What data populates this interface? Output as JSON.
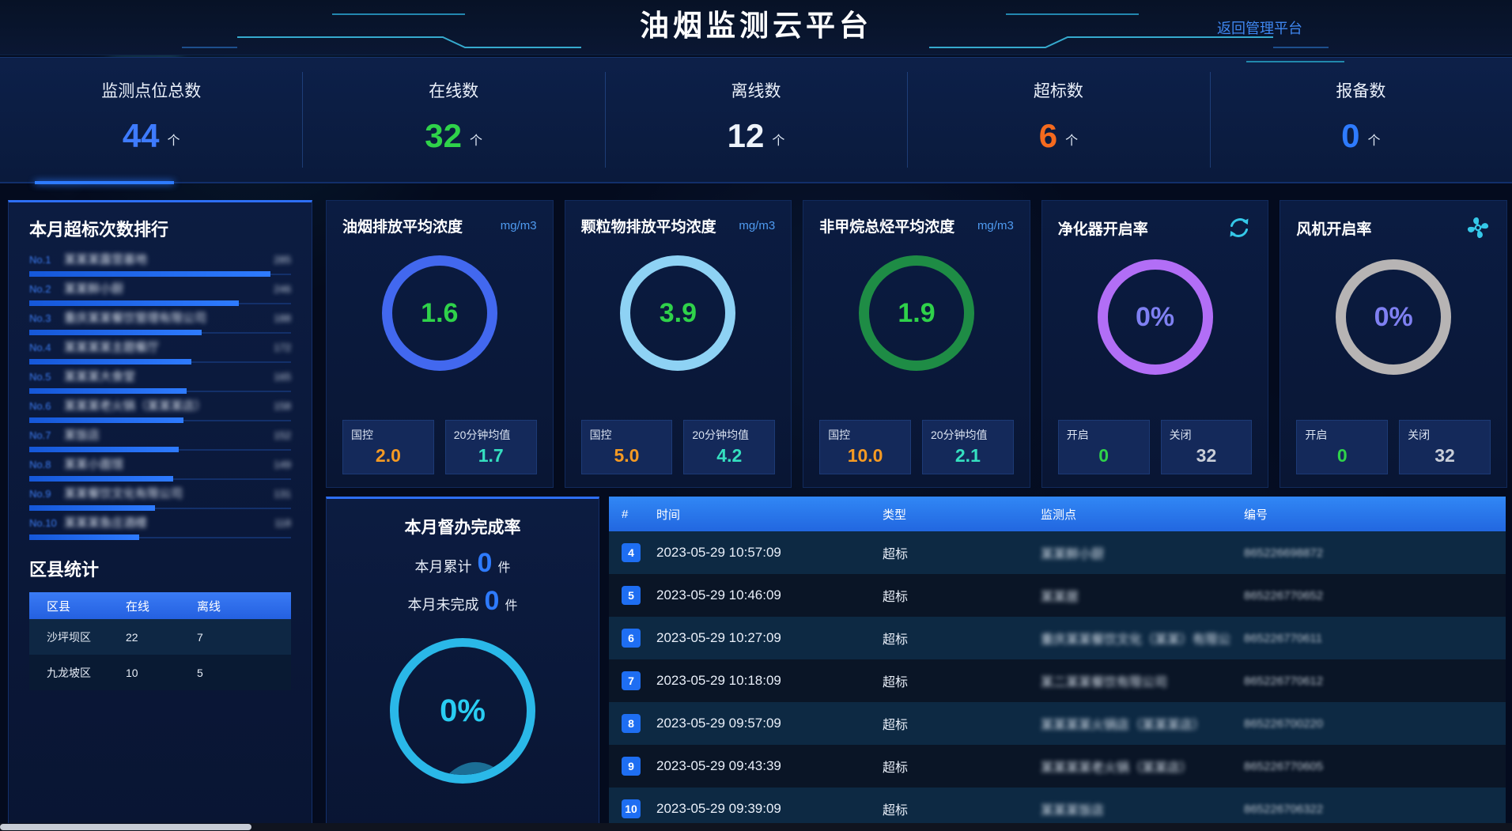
{
  "header": {
    "title": "油烟监测云平台",
    "back_label": "返回管理平台"
  },
  "stats": [
    {
      "label": "监测点位总数",
      "value": "44",
      "unit": "个",
      "color": "#3e7bff"
    },
    {
      "label": "在线数",
      "value": "32",
      "unit": "个",
      "color": "#2fd24a"
    },
    {
      "label": "离线数",
      "value": "12",
      "unit": "个",
      "color": "#eef3fa"
    },
    {
      "label": "超标数",
      "value": "6",
      "unit": "个",
      "color": "#f56a1e"
    },
    {
      "label": "报备数",
      "value": "0",
      "unit": "个",
      "color": "#2e7bff"
    }
  ],
  "ranking": {
    "title": "本月超标次数排行",
    "masked": true,
    "items": [
      {
        "rank": "No.1",
        "name": "某某某露营基地",
        "value": "285",
        "bar_percent": 92
      },
      {
        "rank": "No.2",
        "name": "某某鲜小厨",
        "value": "246",
        "bar_percent": 80
      },
      {
        "rank": "No.3",
        "name": "重庆某某餐饮管理有限公司",
        "value": "188",
        "bar_percent": 66
      },
      {
        "rank": "No.4",
        "name": "某某某某主题餐厅",
        "value": "172",
        "bar_percent": 62
      },
      {
        "rank": "No.5",
        "name": "某某某大食堂",
        "value": "165",
        "bar_percent": 60
      },
      {
        "rank": "No.6",
        "name": "某某某老火锅（某某某店）",
        "value": "158",
        "bar_percent": 59
      },
      {
        "rank": "No.7",
        "name": "某饭店",
        "value": "152",
        "bar_percent": 57
      },
      {
        "rank": "No.8",
        "name": "某某小面馆",
        "value": "149",
        "bar_percent": 55
      },
      {
        "rank": "No.9",
        "name": "某某餐饮文化有限公司",
        "value": "131",
        "bar_percent": 48
      },
      {
        "rank": "No.10",
        "name": "某某某鱼庄酒楼",
        "value": "118",
        "bar_percent": 42
      }
    ]
  },
  "district": {
    "title": "区县统计",
    "columns": [
      "区县",
      "在线",
      "离线"
    ],
    "rows": [
      [
        "沙坪坝区",
        "22",
        "7"
      ],
      [
        "九龙坡区",
        "10",
        "5"
      ]
    ]
  },
  "gauges": [
    {
      "title": "油烟排放平均浓度",
      "unit": "mg/m3",
      "value": "1.6",
      "value_color": "#2fd24a",
      "ring_color": "#4268ef",
      "stats": [
        {
          "label": "国控",
          "value": "2.0",
          "color": "#f59a23"
        },
        {
          "label": "20分钟均值",
          "value": "1.7",
          "color": "#35e0c0"
        }
      ]
    },
    {
      "title": "颗粒物排放平均浓度",
      "unit": "mg/m3",
      "value": "3.9",
      "value_color": "#2fd24a",
      "ring_color": "#8ed2f4",
      "stats": [
        {
          "label": "国控",
          "value": "5.0",
          "color": "#f59a23"
        },
        {
          "label": "20分钟均值",
          "value": "4.2",
          "color": "#35e0c0"
        }
      ]
    },
    {
      "title": "非甲烷总烃平均浓度",
      "unit": "mg/m3",
      "value": "1.9",
      "value_color": "#2fd24a",
      "ring_color": "#1e8c45",
      "stats": [
        {
          "label": "国控",
          "value": "10.0",
          "color": "#f59a23"
        },
        {
          "label": "20分钟均值",
          "value": "2.1",
          "color": "#35e0c0"
        }
      ]
    },
    {
      "title": "净化器开启率",
      "icon": "refresh-icon",
      "value": "0%",
      "value_color": "#7f80f2",
      "ring_color": "#b26ef6",
      "stats": [
        {
          "label": "开启",
          "value": "0",
          "color": "#2fd24a"
        },
        {
          "label": "关闭",
          "value": "32",
          "color": "#c9ced8"
        }
      ]
    },
    {
      "title": "风机开启率",
      "icon": "fan-icon",
      "value": "0%",
      "value_color": "#7f80f2",
      "ring_color": "#b7b4b4",
      "stats": [
        {
          "label": "开启",
          "value": "0",
          "color": "#2fd24a"
        },
        {
          "label": "关闭",
          "value": "32",
          "color": "#c9ced8"
        }
      ]
    }
  ],
  "supervision": {
    "title": "本月督办完成率",
    "lines": [
      {
        "label": "本月累计",
        "value": "0",
        "unit": "件"
      },
      {
        "label": "本月未完成",
        "value": "0",
        "unit": "件"
      }
    ],
    "percent": "0%"
  },
  "alerts": {
    "columns": [
      "#",
      "时间",
      "类型",
      "监测点",
      "编号"
    ],
    "masked_columns": [
      "监测点",
      "编号"
    ],
    "rows": [
      {
        "index": "4",
        "time": "2023-05-29 10:57:09",
        "type": "超标",
        "point": "某某鲜小厨",
        "code": "865226698872"
      },
      {
        "index": "5",
        "time": "2023-05-29 10:46:09",
        "type": "超标",
        "point": "某某居",
        "code": "865226770652"
      },
      {
        "index": "6",
        "time": "2023-05-29 10:27:09",
        "type": "超标",
        "point": "重庆某某餐饮文化（某某）有限公司",
        "code": "865226770611"
      },
      {
        "index": "7",
        "time": "2023-05-29 10:18:09",
        "type": "超标",
        "point": "某二某某餐饮有限公司",
        "code": "865226770612"
      },
      {
        "index": "8",
        "time": "2023-05-29 09:57:09",
        "type": "超标",
        "point": "某某某某火锅店（某某某店）",
        "code": "865226700220"
      },
      {
        "index": "9",
        "time": "2023-05-29 09:43:39",
        "type": "超标",
        "point": "某某某某老火锅（某某店）",
        "code": "865226770605"
      },
      {
        "index": "10",
        "time": "2023-05-29 09:39:09",
        "type": "超标",
        "point": "某某某饭店",
        "code": "865226706322"
      }
    ]
  }
}
